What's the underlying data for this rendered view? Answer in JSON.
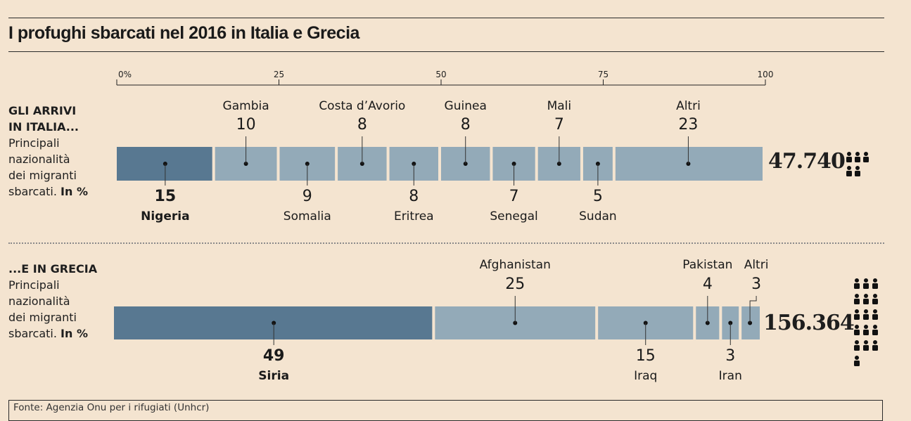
{
  "title": "I profughi sbarcati nel 2016 in Italia e Grecia",
  "source": "Fonte: Agenzia Onu per i rifugiati (Unhcr)",
  "colors": {
    "dark": "#587891",
    "light": "#93aab8",
    "background": "#f4e4d0"
  },
  "italy_panel": {
    "heading_line1": "GLI ARRIVI",
    "heading_line2": "IN ITALIA...",
    "desc1": "Principali",
    "desc2": "nazionalità",
    "desc3": "dei migranti",
    "desc4": "sbarcati.",
    "desc_unit": "In %",
    "total": "47.740",
    "people_icon": "people-icon"
  },
  "greece_panel": {
    "heading_line1": "...E IN GRECIA",
    "desc1": "Principali",
    "desc2": "nazionalità",
    "desc3": "dei migranti",
    "desc4": "sbarcati.",
    "desc_unit": "In %",
    "total": "156.364",
    "people_icon": "people-icon"
  },
  "chart_data": {
    "type": "bar",
    "axis_ticks": [
      "0%",
      "25",
      "50",
      "75",
      "100"
    ],
    "xlim": [
      0,
      100
    ],
    "series": [
      {
        "name": "GLI ARRIVI IN ITALIA...",
        "segments": [
          {
            "label": "Nigeria",
            "value": 15,
            "highlight": true,
            "label_pos": "below"
          },
          {
            "label": "Gambia",
            "value": 10,
            "label_pos": "above"
          },
          {
            "label": "Somalia",
            "value": 9,
            "label_pos": "below"
          },
          {
            "label": "Costa d’Avorio",
            "value": 8,
            "label_pos": "above"
          },
          {
            "label": "Eritrea",
            "value": 8,
            "label_pos": "below"
          },
          {
            "label": "Guinea",
            "value": 8,
            "label_pos": "above"
          },
          {
            "label": "Senegal",
            "value": 7,
            "label_pos": "below"
          },
          {
            "label": "Mali",
            "value": 7,
            "label_pos": "above"
          },
          {
            "label": "Sudan",
            "value": 5,
            "label_pos": "below"
          },
          {
            "label": "Altri",
            "value": 23,
            "label_pos": "above"
          }
        ]
      },
      {
        "name": "...E IN GRECIA",
        "segments": [
          {
            "label": "Siria",
            "value": 49,
            "highlight": true,
            "label_pos": "below"
          },
          {
            "label": "Afghanistan",
            "value": 25,
            "label_pos": "above"
          },
          {
            "label": "Iraq",
            "value": 15,
            "label_pos": "below"
          },
          {
            "label": "Pakistan",
            "value": 4,
            "label_pos": "above"
          },
          {
            "label": "Iran",
            "value": 3,
            "label_pos": "below"
          },
          {
            "label": "Altri",
            "value": 3,
            "label_pos": "above"
          }
        ]
      }
    ]
  }
}
